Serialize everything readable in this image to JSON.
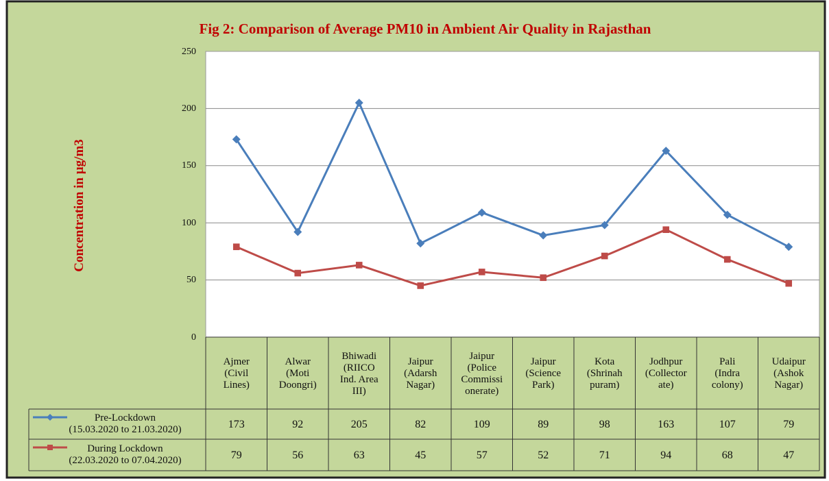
{
  "chart_data": {
    "type": "line",
    "title": "Fig 2: Comparison of Average PM10 in Ambient Air Quality in Rajasthan",
    "y_label": "Concentration in µg/m3",
    "categories": [
      "Ajmer\n(Civil\nLines)",
      "Alwar\n(Moti\nDoongri)",
      "Bhiwadi\n(RIICO\nInd. Area\nIII)",
      "Jaipur\n(Adarsh\nNagar)",
      "Jaipur\n(Police\nCommissi\nonerate)",
      "Jaipur\n(Science\nPark)",
      "Kota\n(Shrinah\npuram)",
      "Jodhpur\n(Collector\nate)",
      "Pali\n(Indra\ncolony)",
      "Udaipur\n(Ashok\nNagar)"
    ],
    "series": [
      {
        "name": "Pre-Lockdown\n(15.03.2020 to 21.03.2020)",
        "color": "#4a7ebb",
        "marker": "diamond",
        "values": [
          173,
          92,
          205,
          82,
          109,
          89,
          98,
          163,
          107,
          79
        ]
      },
      {
        "name": "During Lockdown\n(22.03.2020 to 07.04.2020)",
        "color": "#be4b48",
        "marker": "square",
        "values": [
          79,
          56,
          63,
          45,
          57,
          52,
          71,
          94,
          68,
          47
        ]
      }
    ],
    "ylim": [
      0,
      250
    ],
    "yticks": [
      0,
      50,
      100,
      150,
      200,
      250
    ],
    "grid": true
  }
}
